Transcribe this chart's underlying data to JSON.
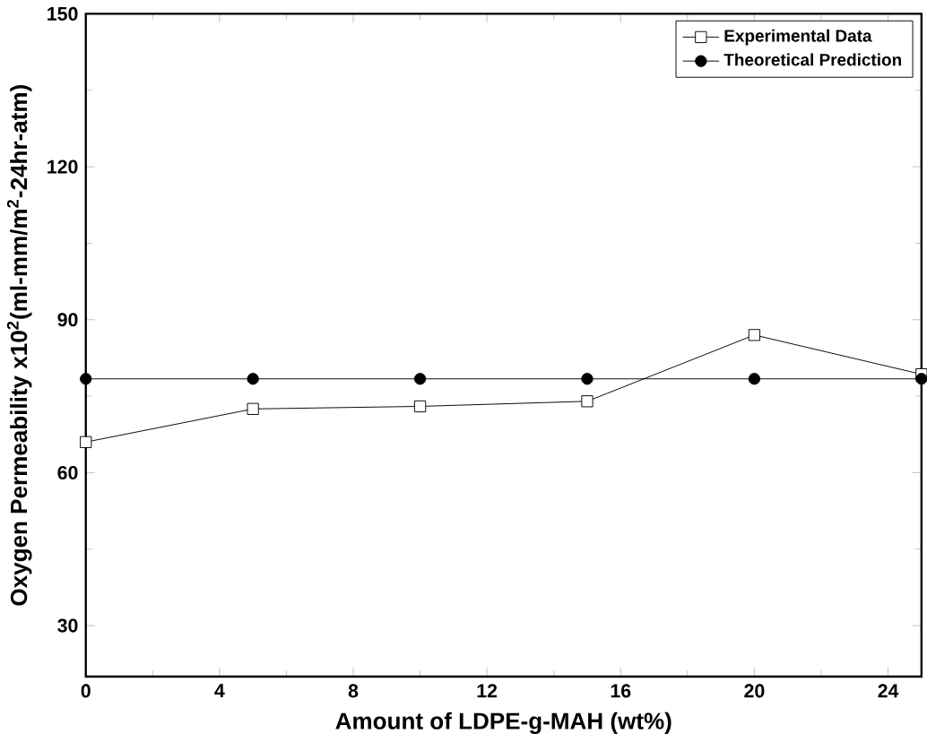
{
  "chart_data": {
    "type": "line",
    "xlabel": "Amount of LDPE-g-MAH (wt%)",
    "ylabel": "Oxygen Permeability x10$^{2}$(ml-mm/m$^{2}$-24hr-atm)",
    "x": [
      0,
      5,
      10,
      15,
      20,
      25
    ],
    "series": [
      {
        "name": "Experimental Data",
        "color": "#000000",
        "marker": "square",
        "values": [
          66,
          72.5,
          73,
          74,
          87,
          79.3
        ]
      },
      {
        "name": "Theoretical Prediction",
        "color": "#000000",
        "marker": "circle",
        "values": [
          78.4,
          78.4,
          78.4,
          78.4,
          78.4,
          78.4
        ]
      }
    ],
    "xlim": [
      0,
      25
    ],
    "ylim": [
      20,
      150
    ],
    "xticks": [
      0,
      4,
      8,
      12,
      16,
      20,
      24
    ],
    "yticks": [
      30,
      60,
      90,
      120,
      150
    ],
    "legend": "top right",
    "grid": false,
    "line_style": "solid"
  }
}
